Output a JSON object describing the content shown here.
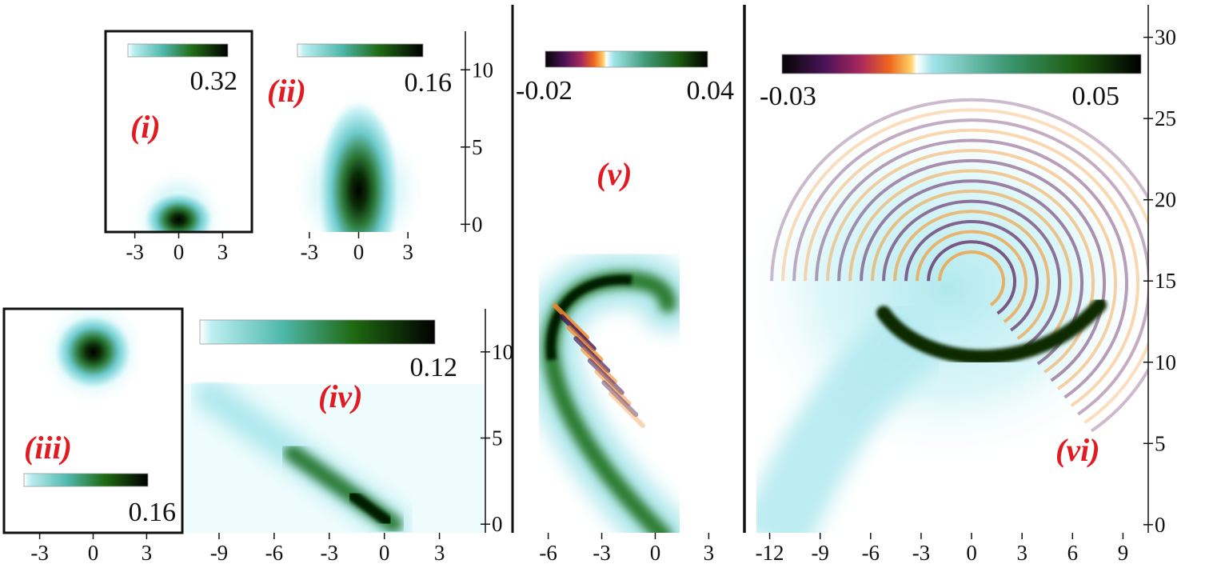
{
  "chart_data": [
    {
      "type": "heatmap",
      "panel_label": "(i)",
      "colorbar": {
        "max_label": "0.32",
        "max": 0.32,
        "min": 0,
        "scheme": "white-cyan-green-black"
      },
      "x_ticks": [
        "-3",
        "0",
        "3"
      ],
      "x_tick_values": [
        -3,
        0,
        3
      ],
      "xlim": [
        -5,
        5
      ],
      "ylim": [
        -0.5,
        12.5
      ],
      "blobs": [
        {
          "x": 0,
          "y": 0.3,
          "rx": 1.3,
          "ry": 1.0,
          "amp": 0.32,
          "halo": 3.2
        }
      ]
    },
    {
      "type": "heatmap",
      "panel_label": "(ii)",
      "colorbar": {
        "max_label": "0.16",
        "max": 0.16,
        "min": 0,
        "scheme": "white-cyan-green-black"
      },
      "x_ticks": [
        "-3",
        "0",
        "3"
      ],
      "x_tick_values": [
        -3,
        0,
        3
      ],
      "y_ticks": [
        "0",
        "5",
        "10"
      ],
      "y_tick_values": [
        0,
        5,
        10
      ],
      "xlim": [
        -6.5,
        6.5
      ],
      "ylim": [
        -0.5,
        12.5
      ],
      "blobs": [
        {
          "x": 0,
          "y": 2.2,
          "rx": 1.4,
          "ry": 3.2,
          "amp": 0.16,
          "halo": 4.2
        }
      ]
    },
    {
      "type": "heatmap",
      "panel_label": "(iii)",
      "colorbar": {
        "max_label": "0.16",
        "max": 0.16,
        "min": 0,
        "scheme": "white-cyan-green-black"
      },
      "x_ticks": [
        "-3",
        "0",
        "3"
      ],
      "x_tick_values": [
        -3,
        0,
        3
      ],
      "xlim": [
        -5,
        5
      ],
      "ylim": [
        -0.5,
        12.5
      ],
      "blobs": [
        {
          "x": 0,
          "y": 10,
          "rx": 1.2,
          "ry": 1.2,
          "amp": 0.16,
          "halo": 3.0
        }
      ]
    },
    {
      "type": "heatmap",
      "panel_label": "(iv)",
      "colorbar": {
        "max_label": "0.12",
        "max": 0.12,
        "min": 0,
        "scheme": "white-cyan-green-black"
      },
      "x_ticks": [
        "-9",
        "-6",
        "-3",
        "0",
        "3"
      ],
      "x_tick_values": [
        -9,
        -6,
        -3,
        0,
        3
      ],
      "y_ticks": [
        "0",
        "5",
        "10"
      ],
      "y_tick_values": [
        0,
        5,
        10
      ],
      "xlim": [
        -11,
        5.5
      ],
      "ylim": [
        -0.5,
        12.5
      ],
      "streak": {
        "from": [
          -9.5,
          7.5
        ],
        "to": [
          0.5,
          0
        ],
        "amp": 0.12
      }
    },
    {
      "type": "heatmap",
      "panel_label": "(v)",
      "colorbar": {
        "min_label": "-0.02",
        "max_label": "0.04",
        "min": -0.02,
        "max": 0.04,
        "scheme": "black-purple-orange-white-cyan-green-black"
      },
      "x_ticks": [
        "-6",
        "-3",
        "0",
        "3"
      ],
      "x_tick_values": [
        -6,
        -3,
        0,
        3
      ],
      "xlim": [
        -8,
        5
      ],
      "ylim": [
        -0.5,
        32
      ],
      "arc": {
        "description": "curved density arm with interference fringes",
        "amp": 0.04
      }
    },
    {
      "type": "heatmap",
      "panel_label": "(vi)",
      "colorbar": {
        "min_label": "-0.03",
        "max_label": "0.05",
        "min": -0.03,
        "max": 0.05,
        "scheme": "black-purple-orange-white-cyan-green-black"
      },
      "x_ticks": [
        "-12",
        "-9",
        "-6",
        "-3",
        "0",
        "3",
        "6",
        "9"
      ],
      "x_tick_values": [
        -12,
        -9,
        -6,
        -3,
        0,
        3,
        6,
        9
      ],
      "y_ticks": [
        "0",
        "5",
        "10",
        "15",
        "20",
        "25",
        "30"
      ],
      "y_tick_values": [
        0,
        5,
        10,
        15,
        20,
        25,
        30
      ],
      "xlim": [
        -13.5,
        10.5
      ],
      "ylim": [
        -0.5,
        32
      ],
      "vortex": {
        "center": [
          0,
          15
        ],
        "outer_radius": 10,
        "amp": 0.05
      }
    }
  ]
}
